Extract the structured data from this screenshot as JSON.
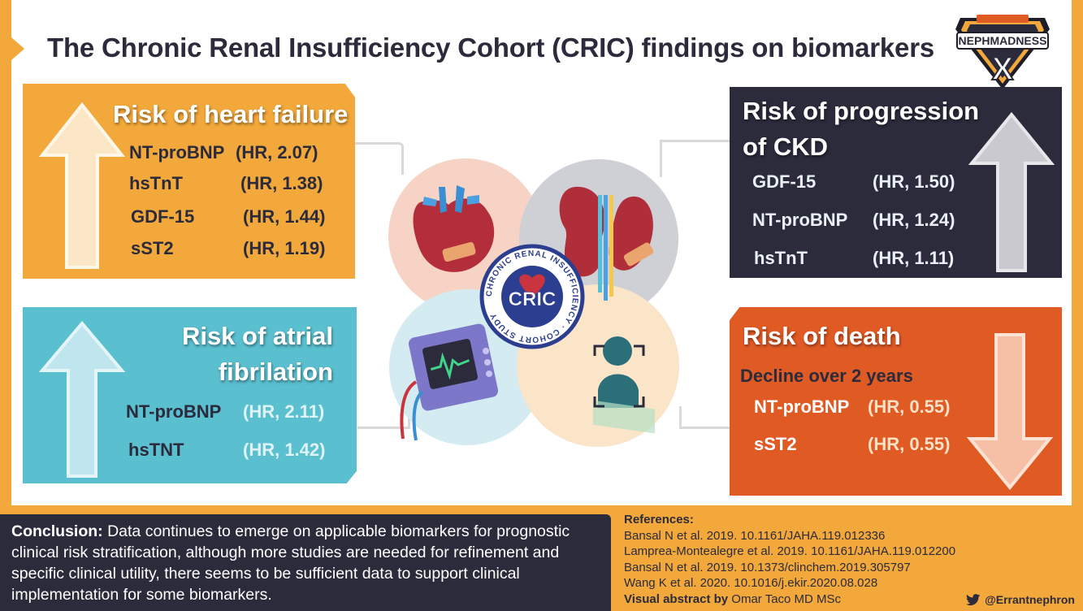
{
  "title": "The Chronic Renal Insufficiency Cohort (CRIC) findings on biomarkers",
  "logo": {
    "top_text": "NEPHMADNESS",
    "big_letter": "X"
  },
  "heart_failure": {
    "title": "Risk of heart failure",
    "rows": [
      {
        "marker": "NT-proBNP",
        "hr": "(HR, 2.07)"
      },
      {
        "marker": "hsTnT",
        "hr": "(HR, 1.38)"
      },
      {
        "marker": "GDF-15",
        "hr": "(HR, 1.44)"
      },
      {
        "marker": "sST2",
        "hr": "(HR, 1.19)"
      }
    ]
  },
  "ckd": {
    "title_line1": "Risk of progression",
    "title_line2": "of CKD",
    "rows": [
      {
        "marker": "GDF-15",
        "hr": "(HR, 1.50)"
      },
      {
        "marker": "NT-proBNP",
        "hr": "(HR, 1.24)"
      },
      {
        "marker": "hsTnT",
        "hr": "(HR, 1.11)"
      }
    ]
  },
  "atrial": {
    "title_line1": "Risk of atrial",
    "title_line2": "fibrilation",
    "rows": [
      {
        "marker": "NT-proBNP",
        "hr": "(HR, 2.11)"
      },
      {
        "marker": "hsTNT",
        "hr": "(HR, 1.42)"
      }
    ]
  },
  "death": {
    "title": "Risk of death",
    "subtitle": "Decline over 2 years",
    "rows": [
      {
        "marker": "NT-proBNP",
        "hr": "(HR, 0.55)"
      },
      {
        "marker": "sST2",
        "hr": "(HR, 0.55)"
      }
    ]
  },
  "cric_badge": {
    "acronym": "CRIC",
    "ring_text": "CHRONIC RENAL INSUFFICIENCY · COHORT STUDY"
  },
  "conclusion": {
    "label": "Conclusion:",
    "text": " Data continues to emerge on applicable biomarkers for prognostic clinical risk stratification, although more studies are needed for refinement and specific clinical utility, there seems to be sufficient data to support clinical implementation for some biomarkers."
  },
  "references": {
    "heading": "References:",
    "items": [
      "Bansal N et al. 2019. 10.1161/JAHA.119.012336",
      "Lamprea-Montealegre et al. 2019. 10.1161/JAHA.119.012200",
      "Bansal N et al. 2019. 10.1373/clinchem.2019.305797",
      "Wang K et al. 2020. 10.1016/j.ekir.2020.08.028"
    ],
    "author_label": "Visual abstract by",
    "author_name": " Omar Taco MD MSc"
  },
  "twitter_handle": "@Errantnephron",
  "colors": {
    "orange": "#f2a83a",
    "teal": "#5abfcf",
    "navy": "#2b2b3c",
    "red_orange": "#e05a24"
  }
}
